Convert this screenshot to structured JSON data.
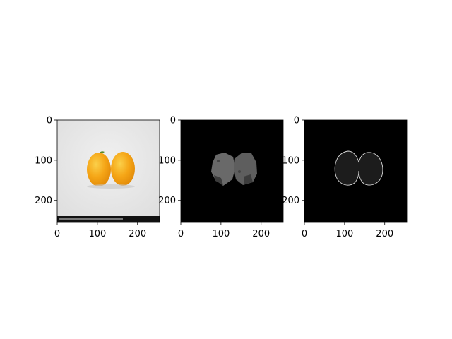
{
  "figure": {
    "background": "#ffffff",
    "axes_color": "#000000"
  },
  "chart_data": [
    {
      "type": "image",
      "content": "photo of two orange kumquat-like fruits on a light grey background with a dark watermark strip at the bottom",
      "xlim": [
        0,
        255
      ],
      "ylim": [
        255,
        0
      ],
      "xticks": [
        0,
        100,
        200
      ],
      "yticks": [
        0,
        100,
        200
      ],
      "colors": {
        "background": "#e6e6e6",
        "fruit": "#f5a516",
        "fruit_highlight": "#fbc93a",
        "strip": "#111111"
      }
    },
    {
      "type": "image",
      "content": "grayscale segmentation of the two fruits on black background",
      "xlim": [
        0,
        255
      ],
      "ylim": [
        255,
        0
      ],
      "xticks": [
        0,
        100,
        200
      ],
      "yticks": [
        0,
        100,
        200
      ],
      "colors": {
        "background": "#000000",
        "region": "#666666",
        "region_dark": "#3a3a3a"
      }
    },
    {
      "type": "image",
      "content": "edge/contour mask of the two fruits on black background",
      "xlim": [
        0,
        255
      ],
      "ylim": [
        255,
        0
      ],
      "xticks": [
        0,
        100,
        200
      ],
      "yticks": [
        0,
        100,
        200
      ],
      "colors": {
        "background": "#000000",
        "fill": "#1c1c1c",
        "edge": "#d8d8d8"
      }
    }
  ]
}
